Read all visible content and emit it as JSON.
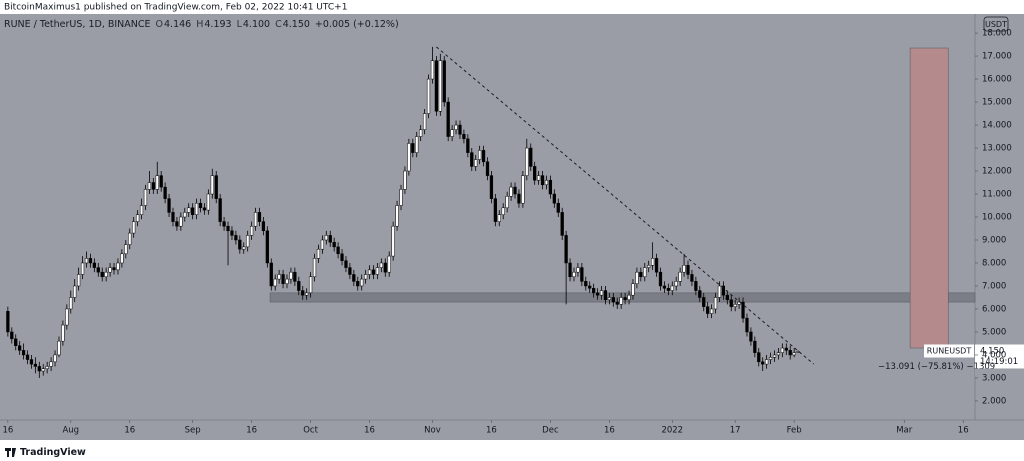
{
  "header": {
    "publisher": "BitcoinMaximus1 published on TradingView.com, Feb 02, 2022 10:41 UTC+1"
  },
  "footer": {
    "brand": "TradingView"
  },
  "chart_data": {
    "type": "candlestick",
    "legend": {
      "symbol": "RUNE / TetherUS, 1D, BINANCE",
      "o_label": "O",
      "o": "4.146",
      "h_label": "H",
      "h": "4.193",
      "l_label": "L",
      "l": "4.100",
      "c_label": "C",
      "c": "4.150",
      "change": "+0.005 (+0.12%)"
    },
    "currency": "USDT",
    "symbol_tag": "RUNEUSDT",
    "last_price_label": "4.150",
    "countdown": "14:19:01",
    "measure_label": "−13.091 (−75.81%) −1309",
    "bull_color": "#ffffff",
    "bear_color": "#000000",
    "background": "#9a9da5",
    "xlim": [
      -2,
      246
    ],
    "ylim": [
      1.17,
      18.83
    ],
    "xticks": [
      {
        "value": 0,
        "label": "16"
      },
      {
        "value": 16,
        "label": "Aug"
      },
      {
        "value": 31,
        "label": "16"
      },
      {
        "value": 47,
        "label": "Sep"
      },
      {
        "value": 62,
        "label": "16"
      },
      {
        "value": 77,
        "label": "Oct"
      },
      {
        "value": 92,
        "label": "16"
      },
      {
        "value": 108,
        "label": "Nov"
      },
      {
        "value": 123,
        "label": "16"
      },
      {
        "value": 138,
        "label": "Dec"
      },
      {
        "value": 153,
        "label": "16"
      },
      {
        "value": 169,
        "label": "2022"
      },
      {
        "value": 185,
        "label": "17"
      },
      {
        "value": 200,
        "label": "Feb"
      },
      {
        "value": 228,
        "label": "Mar"
      },
      {
        "value": 243,
        "label": "16"
      }
    ],
    "yticks": [
      {
        "value": 2,
        "label": "2.000"
      },
      {
        "value": 3,
        "label": "3.000"
      },
      {
        "value": 4,
        "label": "4.000"
      },
      {
        "value": 5,
        "label": "5.000"
      },
      {
        "value": 6,
        "label": "6.000"
      },
      {
        "value": 7,
        "label": "7.000"
      },
      {
        "value": 8,
        "label": "8.000"
      },
      {
        "value": 9,
        "label": "9.000"
      },
      {
        "value": 10,
        "label": "10.000"
      },
      {
        "value": 11,
        "label": "11.000"
      },
      {
        "value": 12,
        "label": "12.000"
      },
      {
        "value": 13,
        "label": "13.000"
      },
      {
        "value": 14,
        "label": "14.000"
      },
      {
        "value": 15,
        "label": "15.000"
      },
      {
        "value": 16,
        "label": "16.000"
      },
      {
        "value": 17,
        "label": "17.000"
      },
      {
        "value": 18,
        "label": "18.000"
      }
    ],
    "support_zone": {
      "start": 66.7,
      "end": 246,
      "low": 6.3,
      "high": 6.7,
      "color": "#7b7e86"
    },
    "target_zone": {
      "start": 229.5,
      "end": 239.2,
      "low": 4.3,
      "high": 17.35,
      "color": "#b48a8c"
    },
    "trendline": {
      "x": [
        109,
        205
      ],
      "y": [
        17.4,
        3.6
      ]
    },
    "ohlc": [
      [
        5.9,
        6.1,
        4.8,
        5.0
      ],
      [
        5.0,
        5.2,
        4.5,
        4.7
      ],
      [
        4.7,
        4.9,
        4.2,
        4.4
      ],
      [
        4.4,
        4.6,
        4.0,
        4.2
      ],
      [
        4.2,
        4.5,
        3.8,
        4.0
      ],
      [
        4.0,
        4.2,
        3.6,
        3.8
      ],
      [
        3.8,
        4.0,
        3.4,
        3.6
      ],
      [
        3.6,
        3.9,
        3.2,
        3.5
      ],
      [
        3.5,
        3.7,
        3.0,
        3.3
      ],
      [
        3.3,
        3.6,
        3.1,
        3.4
      ],
      [
        3.4,
        3.7,
        3.2,
        3.5
      ],
      [
        3.5,
        3.9,
        3.3,
        3.7
      ],
      [
        3.7,
        4.2,
        3.5,
        4.0
      ],
      [
        4.0,
        4.8,
        3.9,
        4.6
      ],
      [
        4.6,
        5.5,
        4.4,
        5.3
      ],
      [
        5.3,
        6.2,
        5.1,
        6.0
      ],
      [
        6.0,
        6.8,
        5.8,
        6.5
      ],
      [
        6.5,
        7.3,
        6.3,
        7.0
      ],
      [
        7.0,
        7.8,
        6.8,
        7.5
      ],
      [
        7.5,
        8.3,
        7.3,
        8.0
      ],
      [
        8.0,
        8.5,
        7.8,
        8.2
      ],
      [
        8.2,
        8.4,
        7.8,
        8.0
      ],
      [
        8.0,
        8.2,
        7.6,
        7.8
      ],
      [
        7.8,
        8.0,
        7.4,
        7.6
      ],
      [
        7.6,
        7.8,
        7.2,
        7.4
      ],
      [
        7.4,
        7.8,
        7.2,
        7.6
      ],
      [
        7.6,
        8.0,
        7.4,
        7.8
      ],
      [
        7.8,
        8.0,
        7.5,
        7.7
      ],
      [
        7.7,
        8.2,
        7.5,
        8.0
      ],
      [
        8.0,
        8.6,
        7.8,
        8.4
      ],
      [
        8.4,
        9.0,
        8.2,
        8.8
      ],
      [
        8.8,
        9.5,
        8.6,
        9.3
      ],
      [
        9.3,
        10.0,
        9.1,
        9.8
      ],
      [
        9.8,
        10.3,
        9.6,
        10.1
      ],
      [
        10.1,
        10.8,
        9.9,
        10.5
      ],
      [
        10.5,
        11.4,
        10.3,
        11.2
      ],
      [
        11.2,
        12.0,
        11.0,
        11.5
      ],
      [
        11.5,
        11.7,
        11.0,
        11.2
      ],
      [
        11.2,
        12.4,
        11.0,
        11.8
      ],
      [
        11.8,
        12.0,
        11.1,
        11.3
      ],
      [
        11.3,
        11.5,
        10.6,
        10.8
      ],
      [
        10.8,
        11.0,
        10.0,
        10.2
      ],
      [
        10.2,
        10.4,
        9.6,
        9.8
      ],
      [
        9.8,
        10.0,
        9.4,
        9.6
      ],
      [
        9.6,
        10.2,
        9.4,
        10.0
      ],
      [
        10.0,
        10.4,
        9.8,
        10.2
      ],
      [
        10.2,
        10.6,
        10.0,
        10.4
      ],
      [
        10.4,
        10.6,
        9.9,
        10.1
      ],
      [
        10.1,
        10.8,
        9.9,
        10.6
      ],
      [
        10.6,
        10.8,
        10.2,
        10.4
      ],
      [
        10.4,
        10.6,
        10.1,
        10.3
      ],
      [
        10.3,
        11.2,
        10.1,
        11.0
      ],
      [
        11.0,
        12.1,
        10.8,
        11.8
      ],
      [
        11.8,
        12.0,
        10.6,
        10.8
      ],
      [
        10.8,
        11.0,
        9.6,
        9.8
      ],
      [
        9.8,
        10.0,
        9.4,
        9.6
      ],
      [
        9.6,
        9.8,
        7.9,
        9.4
      ],
      [
        9.4,
        9.6,
        9.0,
        9.2
      ],
      [
        9.2,
        9.4,
        8.8,
        9.0
      ],
      [
        9.0,
        9.2,
        8.4,
        8.6
      ],
      [
        8.6,
        8.9,
        8.4,
        8.7
      ],
      [
        8.7,
        9.4,
        8.5,
        9.2
      ],
      [
        9.2,
        9.8,
        9.0,
        9.6
      ],
      [
        9.6,
        10.4,
        9.4,
        10.2
      ],
      [
        10.2,
        10.4,
        9.6,
        9.8
      ],
      [
        9.8,
        10.0,
        9.2,
        9.4
      ],
      [
        9.4,
        9.6,
        7.8,
        8.0
      ],
      [
        8.0,
        8.2,
        6.8,
        7.0
      ],
      [
        7.0,
        7.5,
        6.8,
        7.3
      ],
      [
        7.3,
        7.7,
        7.1,
        7.5
      ],
      [
        7.5,
        7.7,
        6.9,
        7.1
      ],
      [
        7.1,
        7.5,
        6.9,
        7.3
      ],
      [
        7.3,
        7.8,
        7.1,
        7.6
      ],
      [
        7.6,
        7.8,
        7.0,
        7.2
      ],
      [
        7.2,
        7.4,
        6.6,
        6.8
      ],
      [
        6.8,
        7.0,
        6.4,
        6.6
      ],
      [
        6.6,
        6.9,
        6.4,
        6.7
      ],
      [
        6.7,
        7.6,
        6.5,
        7.4
      ],
      [
        7.4,
        8.4,
        7.2,
        8.2
      ],
      [
        8.2,
        8.8,
        8.0,
        8.6
      ],
      [
        8.6,
        9.2,
        8.4,
        9.0
      ],
      [
        9.0,
        9.4,
        8.8,
        9.2
      ],
      [
        9.2,
        9.4,
        8.7,
        8.9
      ],
      [
        8.9,
        9.1,
        8.5,
        8.7
      ],
      [
        8.7,
        8.9,
        8.2,
        8.4
      ],
      [
        8.4,
        8.6,
        7.9,
        8.1
      ],
      [
        8.1,
        8.3,
        7.6,
        7.8
      ],
      [
        7.8,
        8.0,
        7.3,
        7.5
      ],
      [
        7.5,
        7.7,
        7.0,
        7.2
      ],
      [
        7.2,
        7.4,
        6.8,
        7.0
      ],
      [
        7.0,
        7.5,
        6.8,
        7.3
      ],
      [
        7.3,
        7.7,
        7.1,
        7.5
      ],
      [
        7.5,
        7.9,
        7.3,
        7.7
      ],
      [
        7.7,
        7.9,
        7.3,
        7.5
      ],
      [
        7.5,
        8.0,
        7.3,
        7.8
      ],
      [
        7.8,
        8.2,
        7.6,
        8.0
      ],
      [
        8.0,
        8.2,
        7.4,
        7.6
      ],
      [
        7.6,
        8.5,
        7.4,
        8.3
      ],
      [
        8.3,
        9.8,
        8.1,
        9.6
      ],
      [
        9.6,
        10.7,
        9.4,
        10.5
      ],
      [
        10.5,
        11.4,
        10.3,
        11.2
      ],
      [
        11.2,
        12.2,
        11.0,
        12.0
      ],
      [
        12.0,
        13.4,
        11.8,
        13.2
      ],
      [
        13.2,
        13.4,
        12.6,
        12.8
      ],
      [
        12.8,
        13.7,
        12.6,
        13.5
      ],
      [
        13.5,
        14.0,
        13.3,
        13.8
      ],
      [
        13.8,
        14.7,
        13.6,
        14.5
      ],
      [
        14.5,
        16.2,
        14.3,
        16.0
      ],
      [
        16.0,
        17.4,
        15.8,
        16.8
      ],
      [
        16.8,
        17.0,
        14.4,
        14.6
      ],
      [
        14.6,
        17.1,
        14.4,
        16.8
      ],
      [
        16.8,
        17.0,
        14.8,
        15.0
      ],
      [
        15.0,
        15.2,
        13.3,
        13.5
      ],
      [
        13.5,
        14.0,
        13.3,
        13.8
      ],
      [
        13.8,
        14.2,
        13.6,
        14.0
      ],
      [
        14.0,
        14.2,
        13.4,
        13.6
      ],
      [
        13.6,
        13.8,
        13.2,
        13.4
      ],
      [
        13.4,
        13.6,
        12.6,
        12.8
      ],
      [
        12.8,
        13.0,
        12.0,
        12.2
      ],
      [
        12.2,
        12.7,
        12.0,
        12.5
      ],
      [
        12.5,
        13.1,
        12.3,
        12.9
      ],
      [
        12.9,
        13.1,
        12.2,
        12.4
      ],
      [
        12.4,
        12.6,
        11.6,
        11.8
      ],
      [
        11.8,
        12.0,
        10.6,
        10.8
      ],
      [
        10.8,
        11.0,
        9.6,
        9.8
      ],
      [
        9.8,
        10.3,
        9.6,
        10.1
      ],
      [
        10.1,
        10.6,
        9.9,
        10.4
      ],
      [
        10.4,
        11.1,
        10.2,
        10.9
      ],
      [
        10.9,
        11.5,
        10.7,
        11.3
      ],
      [
        11.3,
        11.5,
        10.8,
        11.0
      ],
      [
        11.0,
        11.2,
        10.4,
        10.6
      ],
      [
        10.6,
        12.0,
        10.4,
        11.8
      ],
      [
        11.8,
        13.4,
        11.6,
        13.0
      ],
      [
        13.0,
        13.2,
        12.0,
        12.2
      ],
      [
        12.2,
        12.4,
        11.4,
        11.6
      ],
      [
        11.6,
        12.0,
        11.4,
        11.8
      ],
      [
        11.8,
        12.0,
        11.2,
        11.4
      ],
      [
        11.4,
        11.8,
        11.2,
        11.6
      ],
      [
        11.6,
        11.8,
        10.8,
        11.0
      ],
      [
        11.0,
        11.2,
        10.4,
        10.6
      ],
      [
        10.6,
        10.8,
        10.0,
        10.2
      ],
      [
        10.2,
        10.4,
        9.0,
        9.2
      ],
      [
        9.2,
        9.4,
        6.2,
        8.0
      ],
      [
        8.0,
        8.2,
        7.2,
        7.4
      ],
      [
        7.4,
        7.8,
        7.2,
        7.6
      ],
      [
        7.6,
        8.0,
        7.4,
        7.8
      ],
      [
        7.8,
        8.0,
        7.0,
        7.2
      ],
      [
        7.2,
        7.4,
        6.8,
        7.0
      ],
      [
        7.0,
        7.2,
        6.7,
        6.9
      ],
      [
        6.9,
        7.1,
        6.5,
        6.7
      ],
      [
        6.7,
        6.9,
        6.4,
        6.6
      ],
      [
        6.6,
        7.0,
        6.4,
        6.8
      ],
      [
        6.8,
        7.0,
        6.2,
        6.4
      ],
      [
        6.4,
        6.7,
        6.2,
        6.5
      ],
      [
        6.5,
        6.7,
        6.1,
        6.3
      ],
      [
        6.3,
        6.5,
        6.0,
        6.2
      ],
      [
        6.2,
        6.7,
        6.0,
        6.5
      ],
      [
        6.5,
        6.7,
        6.2,
        6.4
      ],
      [
        6.4,
        6.8,
        6.2,
        6.6
      ],
      [
        6.6,
        7.3,
        6.4,
        7.1
      ],
      [
        7.1,
        7.8,
        6.9,
        7.6
      ],
      [
        7.6,
        7.8,
        7.2,
        7.4
      ],
      [
        7.4,
        8.0,
        7.2,
        7.8
      ],
      [
        7.8,
        8.1,
        7.6,
        7.9
      ],
      [
        7.9,
        8.9,
        7.7,
        8.2
      ],
      [
        8.2,
        8.4,
        7.4,
        7.6
      ],
      [
        7.6,
        7.8,
        6.8,
        7.0
      ],
      [
        7.0,
        7.2,
        6.7,
        6.9
      ],
      [
        6.9,
        7.1,
        6.6,
        6.8
      ],
      [
        6.8,
        7.2,
        6.6,
        7.0
      ],
      [
        7.0,
        7.4,
        6.8,
        7.2
      ],
      [
        7.2,
        7.8,
        7.0,
        7.6
      ],
      [
        7.6,
        8.4,
        7.4,
        7.9
      ],
      [
        7.9,
        8.1,
        7.3,
        7.5
      ],
      [
        7.5,
        7.7,
        7.0,
        7.2
      ],
      [
        7.2,
        7.4,
        6.6,
        6.8
      ],
      [
        6.8,
        7.0,
        6.3,
        6.5
      ],
      [
        6.5,
        6.7,
        5.9,
        6.1
      ],
      [
        6.1,
        6.3,
        5.6,
        5.8
      ],
      [
        5.8,
        6.2,
        5.6,
        6.0
      ],
      [
        6.0,
        6.7,
        5.8,
        6.5
      ],
      [
        6.5,
        7.2,
        6.3,
        7.0
      ],
      [
        7.0,
        7.2,
        6.4,
        6.6
      ],
      [
        6.6,
        6.8,
        6.2,
        6.4
      ],
      [
        6.4,
        6.6,
        5.9,
        6.1
      ],
      [
        6.1,
        6.4,
        5.9,
        6.2
      ],
      [
        6.2,
        6.5,
        6.0,
        6.3
      ],
      [
        6.3,
        6.5,
        5.4,
        5.6
      ],
      [
        5.6,
        5.8,
        4.8,
        5.0
      ],
      [
        5.0,
        5.2,
        4.4,
        4.6
      ],
      [
        4.6,
        4.8,
        3.9,
        4.1
      ],
      [
        4.1,
        4.3,
        3.5,
        3.7
      ],
      [
        3.7,
        3.9,
        3.3,
        3.6
      ],
      [
        3.6,
        4.0,
        3.4,
        3.8
      ],
      [
        3.8,
        4.1,
        3.6,
        3.9
      ],
      [
        3.9,
        4.2,
        3.7,
        4.0
      ],
      [
        4.0,
        4.3,
        3.8,
        4.1
      ],
      [
        4.1,
        4.5,
        3.9,
        4.3
      ],
      [
        4.3,
        4.5,
        4.0,
        4.2
      ],
      [
        4.2,
        4.4,
        3.8,
        4.0
      ],
      [
        4.0,
        4.3,
        3.9,
        4.1
      ],
      [
        4.146,
        4.193,
        4.1,
        4.15
      ]
    ]
  }
}
